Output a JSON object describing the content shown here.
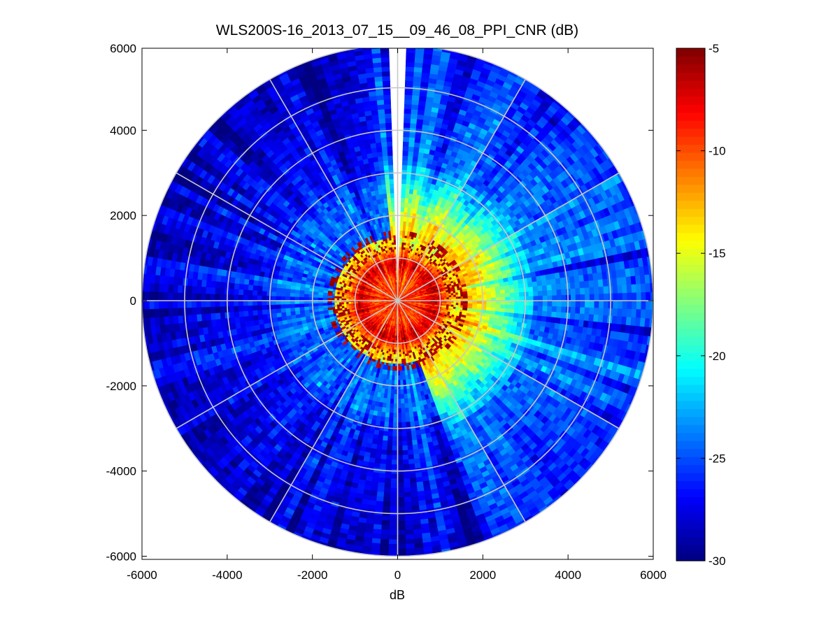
{
  "chart_data": {
    "type": "heatmap",
    "subtype": "polar-ppi-scan",
    "title": "WLS200S-16_2013_07_15__09_46_08_PPI_CNR (dB)",
    "xlabel": "dB",
    "ylabel": "",
    "xlim": [
      -6000,
      6000
    ],
    "ylim": [
      -6000,
      6000
    ],
    "x_ticks": [
      -6000,
      -4000,
      -2000,
      0,
      2000,
      4000,
      6000
    ],
    "y_ticks": [
      -6000,
      -4000,
      -2000,
      0,
      2000,
      4000,
      6000
    ],
    "x_tick_labels": [
      "-6000",
      "-4000",
      "-2000",
      "0",
      "2000",
      "4000",
      "6000"
    ],
    "y_tick_labels": [
      "-6000",
      "-4000",
      "-2000",
      "0",
      "2000",
      "4000",
      "6000"
    ],
    "max_range": 6000,
    "range_rings": [
      1000,
      2000,
      3000,
      4000,
      5000,
      6000
    ],
    "spoke_angles_deg": [
      0,
      30,
      60,
      90,
      120,
      150,
      180,
      210,
      240,
      270,
      300,
      330
    ],
    "missing_sector_azimuth_deg": [
      88.5,
      91.5
    ],
    "colorbar": {
      "colormap": "jet",
      "range": [
        -30,
        -5
      ],
      "ticks": [
        -30,
        -25,
        -20,
        -15,
        -10,
        -5
      ],
      "tick_labels": [
        "-30",
        "-25",
        "-20",
        "-15",
        "-10",
        "-5"
      ]
    },
    "cnr_profile": {
      "description_ranges_m": [
        0,
        500,
        900,
        1300,
        2000,
        3000,
        6000
      ],
      "core_db": [
        -9,
        -10,
        -7,
        -14,
        -17,
        -24,
        -26
      ],
      "background_db": -26,
      "bright_azimuth_deg": [
        -70,
        95
      ],
      "bright_extent_m": 3200
    },
    "grid": true,
    "colors": {
      "grid_line": "#c8c8c8",
      "axes_frame": "#000000",
      "background": "#ffffff"
    }
  }
}
